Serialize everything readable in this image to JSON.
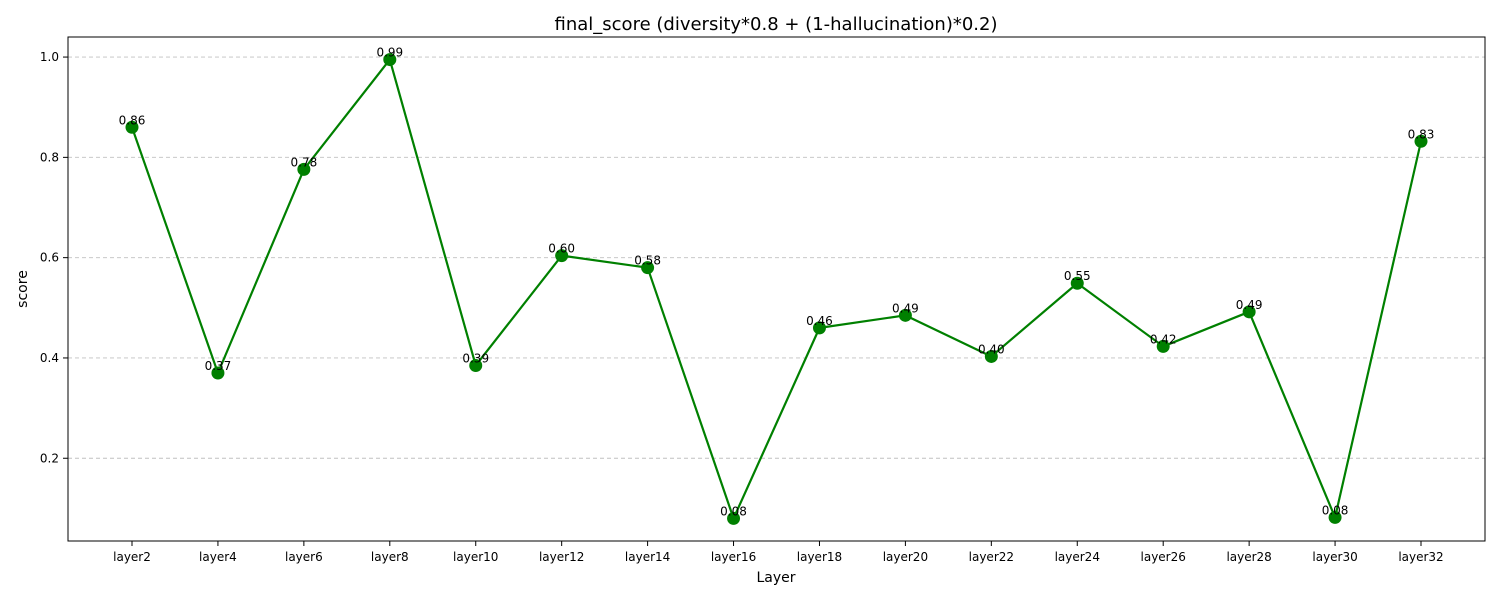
{
  "chart_data": {
    "type": "line",
    "title": "final_score (diversity*0.8 + (1-hallucination)*0.2)",
    "xlabel": "Layer",
    "ylabel": "score",
    "categories": [
      "layer2",
      "layer4",
      "layer6",
      "layer8",
      "layer10",
      "layer12",
      "layer14",
      "layer16",
      "layer18",
      "layer20",
      "layer22",
      "layer24",
      "layer26",
      "layer28",
      "layer30",
      "layer32"
    ],
    "values": [
      0.86,
      0.37,
      0.776,
      0.995,
      0.385,
      0.604,
      0.58,
      0.08,
      0.46,
      0.485,
      0.403,
      0.549,
      0.423,
      0.492,
      0.082,
      0.832
    ],
    "data_labels": [
      "0.86",
      "0.37",
      "0.78",
      "0.99",
      "0.39",
      "0.60",
      "0.58",
      "0.08",
      "0.46",
      "0.49",
      "0.40",
      "0.55",
      "0.42",
      "0.49",
      "0.08",
      "0.83"
    ],
    "ylim": [
      0.035,
      1.04
    ],
    "yticks": [
      0.2,
      0.4,
      0.6,
      0.8,
      1.0
    ],
    "ytick_labels": [
      "0.2",
      "0.4",
      "0.6",
      "0.8",
      "1.0"
    ],
    "grid": "y-dashed",
    "line_color": "#008000",
    "marker_color": "#008000",
    "grid_color": "#c0c0c0"
  }
}
